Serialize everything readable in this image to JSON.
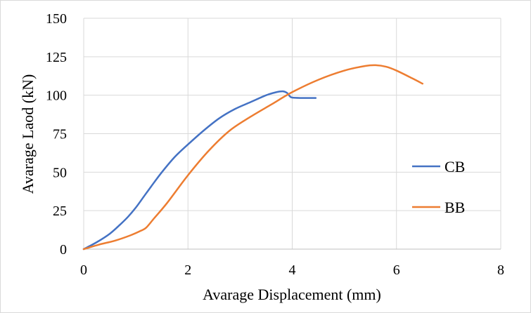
{
  "chart_data": {
    "type": "line",
    "title": "",
    "xlabel": "Avarage Displacement (mm)",
    "ylabel": "Avarage Laod (kN)",
    "xlim": [
      0,
      8
    ],
    "ylim": [
      0,
      150
    ],
    "xticks": [
      0,
      2,
      4,
      6,
      8
    ],
    "yticks": [
      0,
      25,
      50,
      75,
      100,
      125,
      150
    ],
    "grid": true,
    "legend_position": "right",
    "series": [
      {
        "name": "CB",
        "color": "#4472c4",
        "x": [
          0,
          0.25,
          0.5,
          0.7,
          0.85,
          1.0,
          1.15,
          1.3,
          1.5,
          1.75,
          2.0,
          2.3,
          2.6,
          2.9,
          3.2,
          3.5,
          3.7,
          3.82,
          3.9,
          3.95,
          4.0,
          4.2,
          4.45
        ],
        "y": [
          0,
          4.5,
          10,
          16,
          21,
          27,
          34,
          41,
          50,
          60,
          68,
          77,
          85,
          91,
          95.5,
          100,
          102,
          102.5,
          101.5,
          99.5,
          98.5,
          98.2,
          98.2
        ]
      },
      {
        "name": "BB",
        "color": "#ed7d31",
        "x": [
          0,
          0.3,
          0.6,
          0.9,
          1.1,
          1.2,
          1.35,
          1.6,
          2.0,
          2.4,
          2.8,
          3.2,
          3.6,
          4.0,
          4.5,
          5.0,
          5.4,
          5.6,
          5.8,
          6.0,
          6.3,
          6.5
        ],
        "y": [
          0,
          3,
          5.5,
          9,
          12,
          14,
          20,
          30,
          48,
          64,
          77,
          86,
          94,
          102,
          110,
          116,
          119,
          119.5,
          118.5,
          116,
          111,
          107.5
        ]
      }
    ]
  }
}
